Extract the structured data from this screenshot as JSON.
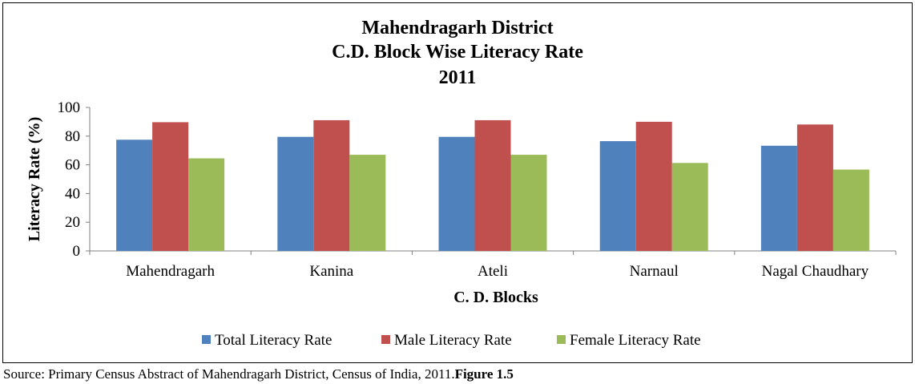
{
  "chart_data": {
    "type": "bar",
    "title_lines": [
      "Mahendragarh District",
      "C.D. Block Wise Literacy Rate",
      "2011"
    ],
    "xlabel": "C. D. Blocks",
    "ylabel": "Literacy Rate (%)",
    "ylim": [
      0,
      100
    ],
    "yticks": [
      "0",
      "20",
      "40",
      "60",
      "80",
      "100"
    ],
    "categories": [
      "Mahendragarh",
      "Kanina",
      "Ateli",
      "Narnaul",
      "Nagal Chaudhary"
    ],
    "series": [
      {
        "name": "Total Literacy Rate",
        "color": "#4F81BD",
        "values": [
          77.5,
          79.5,
          79.5,
          76.5,
          73.3
        ]
      },
      {
        "name": "Male Literacy Rate",
        "color": "#C0504D",
        "values": [
          89.7,
          91.1,
          91.1,
          90.0,
          88.1
        ]
      },
      {
        "name": "Female Literacy Rate",
        "color": "#9BBB59",
        "values": [
          64.5,
          67.0,
          67.0,
          61.3,
          56.7
        ]
      }
    ],
    "legend_position": "bottom",
    "grid": false
  },
  "source": {
    "text": "Source: Primary Census Abstract of Mahendragarh District, Census of India, 2011.",
    "figure_label": "Figure 1.5"
  }
}
